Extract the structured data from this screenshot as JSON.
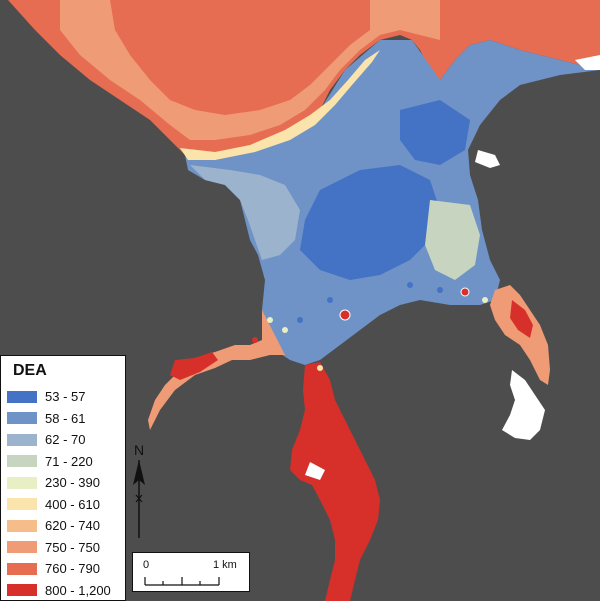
{
  "legend": {
    "title": "DEA",
    "items": [
      {
        "label": "53 - 57",
        "color": "#4472c4"
      },
      {
        "label": "58 - 61",
        "color": "#6f93c7"
      },
      {
        "label": "62 - 70",
        "color": "#9cb3cd"
      },
      {
        "label": "71 - 220",
        "color": "#c6d4c0"
      },
      {
        "label": "230 - 390",
        "color": "#e9efc4"
      },
      {
        "label": "400 - 610",
        "color": "#fbe4ab"
      },
      {
        "label": "620 - 740",
        "color": "#f6bd8b"
      },
      {
        "label": "750 - 750",
        "color": "#ef9b76"
      },
      {
        "label": "760 - 790",
        "color": "#e66c52"
      },
      {
        "label": "800 - 1,200",
        "color": "#d7302a"
      }
    ]
  },
  "scale": {
    "zero_label": "0",
    "dist_label": "1 km"
  },
  "north": {
    "label": "N"
  },
  "colors": {
    "land": "#4d4d4d",
    "water_blank": "#ffffff"
  }
}
